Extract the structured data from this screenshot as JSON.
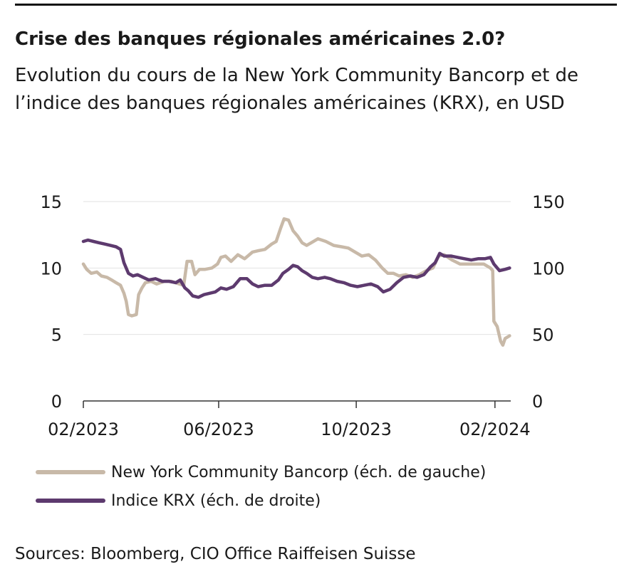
{
  "title": "Crise des banques régionales américaines 2.0?",
  "subtitle": "Evolution du cours de la New York Community Bancorp et de l’indice des banques régionales américaines (KRX), en USD",
  "source": "Sources: Bloomberg, CIO Office Raiffeisen Suisse",
  "chart_data": {
    "type": "line",
    "title": "Crise des banques régionales américaines 2.0?",
    "subtitle": "Evolution du cours de la New York Community Bancorp et de l’indice des banques régionales américaines (KRX), en USD",
    "x_ticks": [
      "02/2023",
      "06/2023",
      "10/2023",
      "02/2024"
    ],
    "x_range": [
      "2023-02-01",
      "2024-02-15"
    ],
    "y_left": {
      "range": [
        0,
        15
      ],
      "ticks": [
        0,
        5,
        10,
        15
      ]
    },
    "y_right": {
      "range": [
        0,
        150
      ],
      "ticks": [
        0,
        50,
        100,
        150
      ]
    },
    "grid": "horizontal",
    "legend_position": "bottom",
    "series": [
      {
        "name": "New York Community Bancorp (éch. de gauche)",
        "axis": "left",
        "color": "#c8b9a8",
        "points": [
          [
            "2023-02-01",
            10.3
          ],
          [
            "2023-02-04",
            9.9
          ],
          [
            "2023-02-08",
            9.6
          ],
          [
            "2023-02-13",
            9.7
          ],
          [
            "2023-02-17",
            9.4
          ],
          [
            "2023-02-22",
            9.3
          ],
          [
            "2023-02-26",
            9.1
          ],
          [
            "2023-03-02",
            8.9
          ],
          [
            "2023-03-06",
            8.7
          ],
          [
            "2023-03-09",
            8.1
          ],
          [
            "2023-03-11",
            7.5
          ],
          [
            "2023-03-13",
            6.5
          ],
          [
            "2023-03-16",
            6.4
          ],
          [
            "2023-03-20",
            6.5
          ],
          [
            "2023-03-22",
            8.0
          ],
          [
            "2023-03-25",
            8.5
          ],
          [
            "2023-03-28",
            8.9
          ],
          [
            "2023-04-02",
            9.0
          ],
          [
            "2023-04-07",
            8.8
          ],
          [
            "2023-04-14",
            9.0
          ],
          [
            "2023-04-20",
            9.0
          ],
          [
            "2023-04-27",
            8.8
          ],
          [
            "2023-05-01",
            8.7
          ],
          [
            "2023-05-04",
            10.5
          ],
          [
            "2023-05-08",
            10.5
          ],
          [
            "2023-05-11",
            9.5
          ],
          [
            "2023-05-15",
            9.9
          ],
          [
            "2023-05-20",
            9.9
          ],
          [
            "2023-05-26",
            10.0
          ],
          [
            "2023-05-31",
            10.3
          ],
          [
            "2023-06-03",
            10.8
          ],
          [
            "2023-06-07",
            10.9
          ],
          [
            "2023-06-12",
            10.5
          ],
          [
            "2023-06-18",
            11.0
          ],
          [
            "2023-06-24",
            10.7
          ],
          [
            "2023-07-01",
            11.2
          ],
          [
            "2023-07-06",
            11.3
          ],
          [
            "2023-07-12",
            11.4
          ],
          [
            "2023-07-18",
            11.8
          ],
          [
            "2023-07-22",
            12.0
          ],
          [
            "2023-07-26",
            13.0
          ],
          [
            "2023-07-29",
            13.7
          ],
          [
            "2023-08-02",
            13.6
          ],
          [
            "2023-08-06",
            12.8
          ],
          [
            "2023-08-10",
            12.4
          ],
          [
            "2023-08-14",
            11.9
          ],
          [
            "2023-08-18",
            11.7
          ],
          [
            "2023-08-22",
            11.9
          ],
          [
            "2023-08-28",
            12.2
          ],
          [
            "2023-09-04",
            12.0
          ],
          [
            "2023-09-11",
            11.7
          ],
          [
            "2023-09-18",
            11.6
          ],
          [
            "2023-09-24",
            11.5
          ],
          [
            "2023-09-30",
            11.2
          ],
          [
            "2023-10-06",
            10.9
          ],
          [
            "2023-10-12",
            11.0
          ],
          [
            "2023-10-18",
            10.6
          ],
          [
            "2023-10-24",
            10.0
          ],
          [
            "2023-10-29",
            9.6
          ],
          [
            "2023-11-03",
            9.6
          ],
          [
            "2023-11-08",
            9.4
          ],
          [
            "2023-11-14",
            9.5
          ],
          [
            "2023-11-20",
            9.3
          ],
          [
            "2023-11-26",
            9.5
          ],
          [
            "2023-12-02",
            9.8
          ],
          [
            "2023-12-08",
            10.0
          ],
          [
            "2023-12-13",
            10.9
          ],
          [
            "2023-12-18",
            11.0
          ],
          [
            "2023-12-25",
            10.6
          ],
          [
            "2024-01-01",
            10.3
          ],
          [
            "2024-01-08",
            10.3
          ],
          [
            "2024-01-15",
            10.3
          ],
          [
            "2024-01-22",
            10.3
          ],
          [
            "2024-01-28",
            10.0
          ],
          [
            "2024-01-30",
            9.8
          ],
          [
            "2024-01-31",
            6.0
          ],
          [
            "2024-02-03",
            5.6
          ],
          [
            "2024-02-06",
            4.5
          ],
          [
            "2024-02-08",
            4.2
          ],
          [
            "2024-02-10",
            4.7
          ],
          [
            "2024-02-14",
            4.9
          ]
        ]
      },
      {
        "name": "Indice KRX (éch. de droite)",
        "axis": "right",
        "color": "#5d3a6e",
        "points": [
          [
            "2023-02-01",
            120
          ],
          [
            "2023-02-05",
            121
          ],
          [
            "2023-02-10",
            120
          ],
          [
            "2023-02-15",
            119
          ],
          [
            "2023-02-20",
            118
          ],
          [
            "2023-02-25",
            117
          ],
          [
            "2023-03-02",
            116
          ],
          [
            "2023-03-06",
            114
          ],
          [
            "2023-03-09",
            104
          ],
          [
            "2023-03-13",
            96
          ],
          [
            "2023-03-17",
            94
          ],
          [
            "2023-03-21",
            95
          ],
          [
            "2023-03-26",
            93
          ],
          [
            "2023-03-31",
            91
          ],
          [
            "2023-04-06",
            92
          ],
          [
            "2023-04-12",
            90
          ],
          [
            "2023-04-18",
            90
          ],
          [
            "2023-04-24",
            89
          ],
          [
            "2023-04-28",
            91
          ],
          [
            "2023-05-02",
            85
          ],
          [
            "2023-05-05",
            83
          ],
          [
            "2023-05-09",
            79
          ],
          [
            "2023-05-14",
            78
          ],
          [
            "2023-05-19",
            80
          ],
          [
            "2023-05-24",
            81
          ],
          [
            "2023-05-29",
            82
          ],
          [
            "2023-06-03",
            85
          ],
          [
            "2023-06-08",
            84
          ],
          [
            "2023-06-14",
            86
          ],
          [
            "2023-06-20",
            92
          ],
          [
            "2023-06-26",
            92
          ],
          [
            "2023-07-01",
            88
          ],
          [
            "2023-07-06",
            86
          ],
          [
            "2023-07-12",
            87
          ],
          [
            "2023-07-18",
            87
          ],
          [
            "2023-07-24",
            91
          ],
          [
            "2023-07-28",
            96
          ],
          [
            "2023-08-02",
            99
          ],
          [
            "2023-08-06",
            102
          ],
          [
            "2023-08-10",
            101
          ],
          [
            "2023-08-14",
            98
          ],
          [
            "2023-08-18",
            96
          ],
          [
            "2023-08-23",
            93
          ],
          [
            "2023-08-28",
            92
          ],
          [
            "2023-09-03",
            93
          ],
          [
            "2023-09-08",
            92
          ],
          [
            "2023-09-14",
            90
          ],
          [
            "2023-09-20",
            89
          ],
          [
            "2023-09-26",
            87
          ],
          [
            "2023-10-02",
            86
          ],
          [
            "2023-10-08",
            87
          ],
          [
            "2023-10-14",
            88
          ],
          [
            "2023-10-20",
            86
          ],
          [
            "2023-10-25",
            82
          ],
          [
            "2023-10-31",
            84
          ],
          [
            "2023-11-06",
            89
          ],
          [
            "2023-11-12",
            93
          ],
          [
            "2023-11-18",
            94
          ],
          [
            "2023-11-24",
            93
          ],
          [
            "2023-11-30",
            95
          ],
          [
            "2023-12-06",
            101
          ],
          [
            "2023-12-10",
            104
          ],
          [
            "2023-12-14",
            111
          ],
          [
            "2023-12-18",
            109
          ],
          [
            "2023-12-24",
            109
          ],
          [
            "2023-12-30",
            108
          ],
          [
            "2024-01-05",
            107
          ],
          [
            "2024-01-11",
            106
          ],
          [
            "2024-01-17",
            107
          ],
          [
            "2024-01-23",
            107
          ],
          [
            "2024-01-28",
            108
          ],
          [
            "2024-01-31",
            103
          ],
          [
            "2024-02-05",
            98
          ],
          [
            "2024-02-10",
            99
          ],
          [
            "2024-02-14",
            100
          ]
        ]
      }
    ]
  }
}
